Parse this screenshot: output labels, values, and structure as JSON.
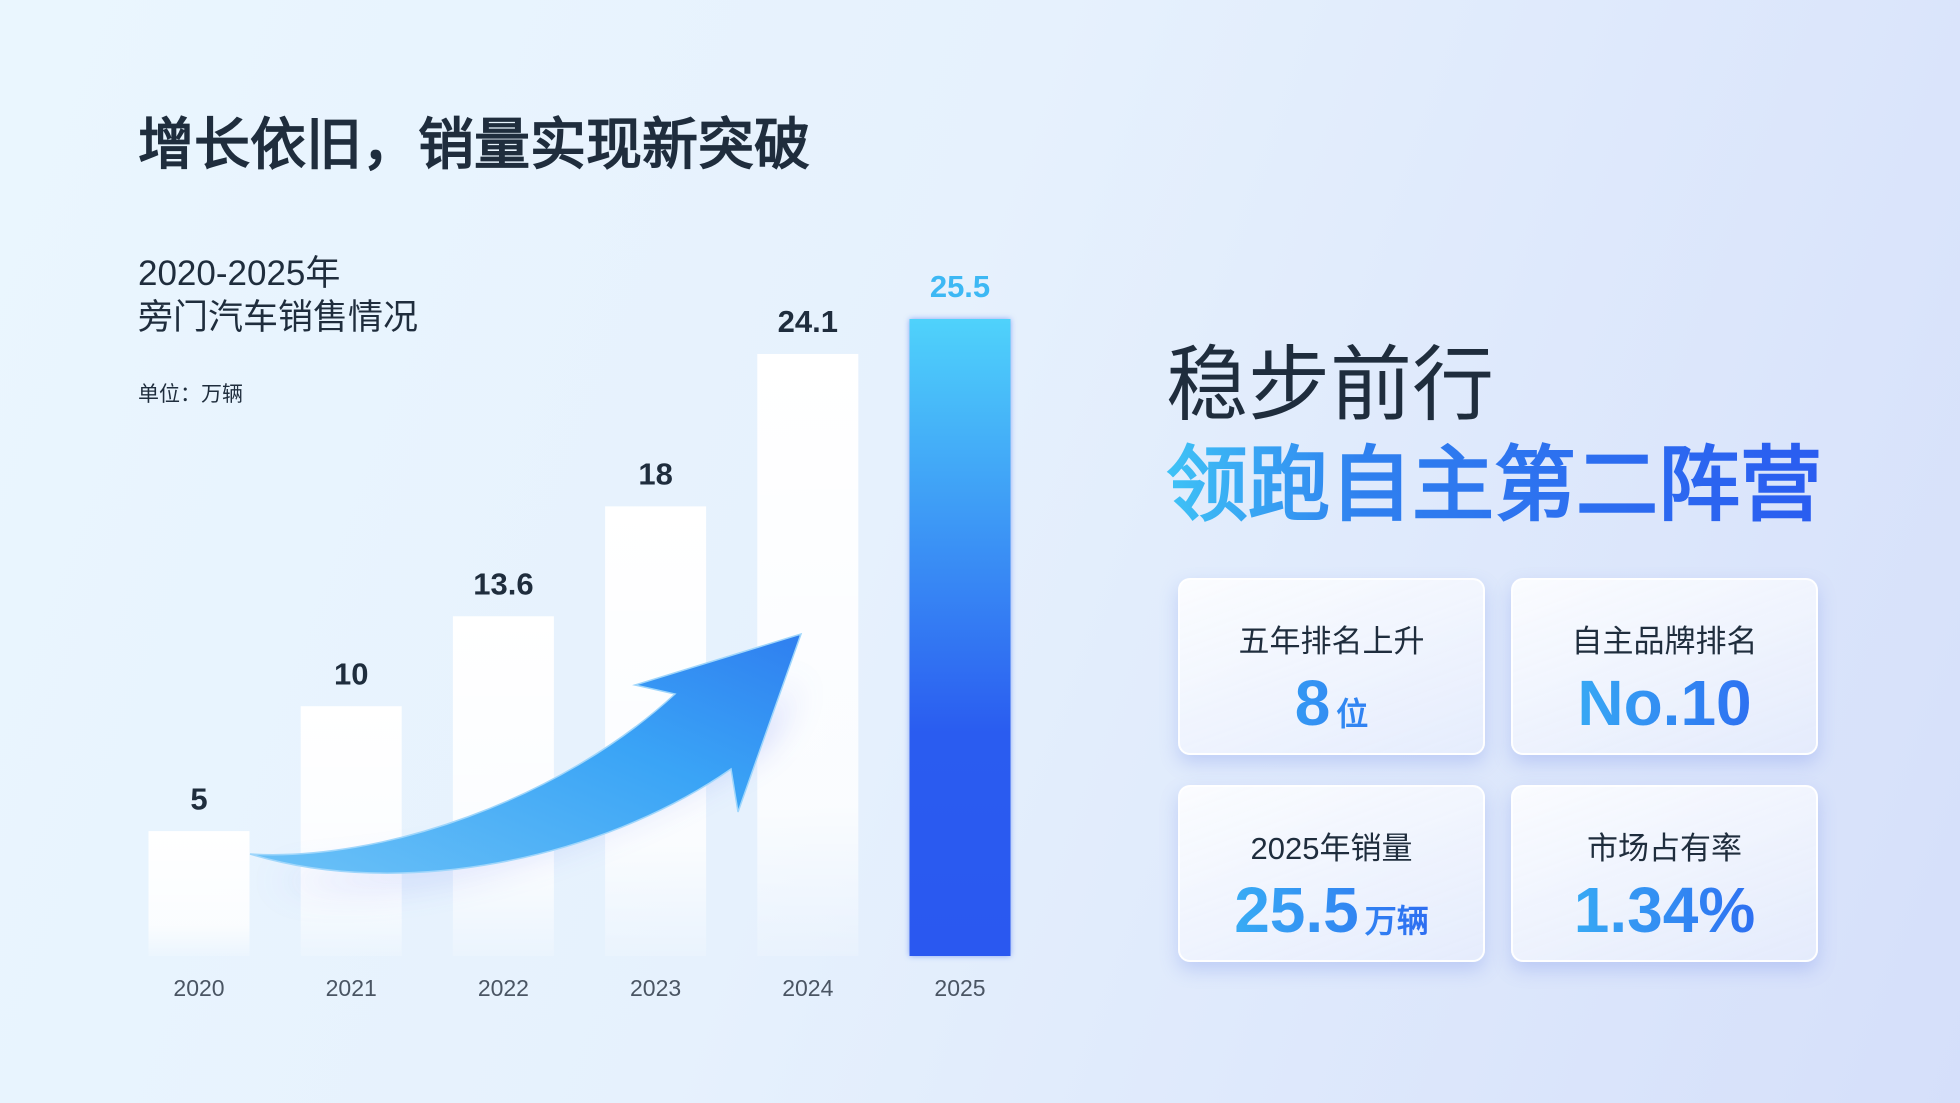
{
  "title": "增长依旧，销量实现新突破",
  "chart_data": {
    "type": "bar",
    "title": "2020-2025年",
    "subtitle": "旁门汽车销售情况",
    "unit": "单位：万辆",
    "categories": [
      "2020",
      "2021",
      "2022",
      "2023",
      "2024",
      "2025"
    ],
    "values": [
      5,
      10,
      13.6,
      18,
      24.1,
      25.5
    ],
    "colors": [
      "#ffffff",
      "#ffffff",
      "#ffffff",
      "#ffffff",
      "#ffffff",
      "#2a5cf0"
    ]
  },
  "headline": {
    "line1": "稳步前行",
    "line2": "领跑自主第二阵营"
  },
  "cards": [
    {
      "label": "五年排名上升",
      "value": "8",
      "unit": "位"
    },
    {
      "label": "自主品牌排名",
      "value": "No.10"
    },
    {
      "label": "2025年销量",
      "value": "25.5",
      "unit": "万辆"
    },
    {
      "label": "市场占有率",
      "value": "1.34%"
    }
  ]
}
